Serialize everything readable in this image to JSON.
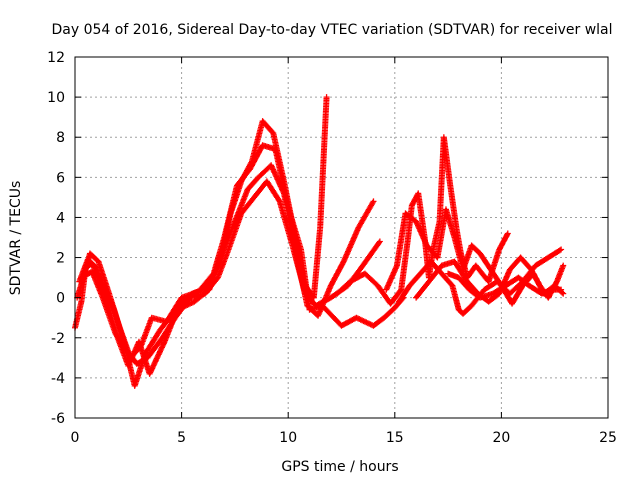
{
  "chart_data": {
    "type": "scatter",
    "title": "Day 054 of 2016, Sidereal Day-to-day VTEC variation (SDTVAR) for receiver wlal",
    "xlabel": "GPS time / hours",
    "ylabel": "SDTVAR / TECUs",
    "xlim": [
      0,
      25
    ],
    "ylim": [
      -6,
      12
    ],
    "xticks": [
      0,
      5,
      10,
      15,
      20,
      25
    ],
    "yticks": [
      -6,
      -4,
      -2,
      0,
      2,
      4,
      6,
      8,
      10,
      12
    ],
    "grid": true,
    "marker": "+",
    "color": "#ff0000",
    "series": [
      {
        "points": [
          [
            0.0,
            -1.5
          ],
          [
            0.3,
            -0.2
          ],
          [
            0.5,
            1.5
          ],
          [
            0.8,
            1.7
          ],
          [
            1.2,
            0.8
          ],
          [
            1.8,
            -0.5
          ],
          [
            2.3,
            -2.2
          ],
          [
            2.8,
            -4.4
          ],
          [
            3.3,
            -2.8
          ],
          [
            4.0,
            -1.6
          ],
          [
            4.8,
            -0.5
          ],
          [
            5.5,
            0.2
          ],
          [
            6.2,
            0.5
          ],
          [
            6.8,
            1.8
          ],
          [
            7.3,
            4.2
          ],
          [
            7.8,
            5.8
          ],
          [
            8.3,
            6.8
          ],
          [
            8.8,
            8.8
          ],
          [
            9.3,
            8.2
          ],
          [
            9.8,
            5.8
          ],
          [
            10.3,
            3.2
          ],
          [
            10.8,
            0.6
          ],
          [
            11.2,
            0.0
          ],
          [
            11.5,
            3.5
          ],
          [
            11.8,
            10.0
          ]
        ]
      },
      {
        "points": [
          [
            0.1,
            0.0
          ],
          [
            0.4,
            1.0
          ],
          [
            0.7,
            2.2
          ],
          [
            1.1,
            1.8
          ],
          [
            1.6,
            0.2
          ],
          [
            2.1,
            -1.5
          ],
          [
            2.6,
            -3.0
          ],
          [
            3.1,
            -2.4
          ],
          [
            3.6,
            -1.0
          ],
          [
            4.3,
            -1.2
          ],
          [
            5.0,
            0.0
          ],
          [
            5.8,
            0.3
          ],
          [
            6.5,
            1.2
          ],
          [
            7.0,
            3.0
          ],
          [
            7.6,
            5.6
          ],
          [
            8.2,
            6.4
          ],
          [
            8.8,
            7.6
          ],
          [
            9.4,
            7.4
          ],
          [
            10.0,
            4.5
          ],
          [
            10.6,
            2.4
          ],
          [
            11.0,
            -0.6
          ],
          [
            11.6,
            -0.4
          ],
          [
            12.5,
            -1.4
          ],
          [
            13.2,
            -1.0
          ],
          [
            14.0,
            -1.4
          ],
          [
            14.5,
            -1.0
          ],
          [
            15.0,
            -0.5
          ],
          [
            15.4,
            0.0
          ]
        ]
      },
      {
        "points": [
          [
            0.2,
            0.8
          ],
          [
            0.6,
            1.9
          ],
          [
            1.0,
            1.5
          ],
          [
            1.5,
            -0.2
          ],
          [
            2.0,
            -2.0
          ],
          [
            2.5,
            -3.4
          ],
          [
            3.0,
            -2.2
          ],
          [
            3.5,
            -3.8
          ],
          [
            4.2,
            -2.2
          ],
          [
            4.8,
            -0.6
          ],
          [
            5.6,
            -0.2
          ],
          [
            6.3,
            0.4
          ],
          [
            6.9,
            2.2
          ],
          [
            7.5,
            3.8
          ],
          [
            8.1,
            5.4
          ],
          [
            8.6,
            6.0
          ],
          [
            9.2,
            6.6
          ],
          [
            9.8,
            5.2
          ],
          [
            10.4,
            2.0
          ],
          [
            10.9,
            -0.4
          ],
          [
            11.4,
            -0.9
          ],
          [
            12.0,
            0.6
          ],
          [
            12.6,
            1.8
          ],
          [
            13.3,
            3.5
          ],
          [
            14.0,
            4.8
          ]
        ]
      },
      {
        "points": [
          [
            0.3,
            1.0
          ],
          [
            0.8,
            1.3
          ],
          [
            1.3,
            0.0
          ],
          [
            1.9,
            -1.8
          ],
          [
            2.4,
            -2.6
          ],
          [
            2.9,
            -3.3
          ],
          [
            3.4,
            -3.0
          ],
          [
            4.1,
            -2.0
          ],
          [
            4.7,
            -1.0
          ],
          [
            5.4,
            0.0
          ],
          [
            6.1,
            0.2
          ],
          [
            6.7,
            1.0
          ],
          [
            7.2,
            2.4
          ],
          [
            7.8,
            4.2
          ],
          [
            8.4,
            5.0
          ],
          [
            9.0,
            5.8
          ],
          [
            9.6,
            4.8
          ],
          [
            10.2,
            2.6
          ],
          [
            10.8,
            0.2
          ],
          [
            11.3,
            -0.4
          ],
          [
            12.0,
            0.0
          ],
          [
            12.8,
            0.6
          ],
          [
            13.5,
            1.6
          ],
          [
            14.3,
            2.8
          ]
        ]
      },
      {
        "points": [
          [
            12.3,
            0.2
          ],
          [
            12.9,
            0.8
          ],
          [
            13.6,
            1.2
          ],
          [
            14.2,
            0.6
          ],
          [
            14.8,
            -0.3
          ],
          [
            15.3,
            0.4
          ],
          [
            15.6,
            2.8
          ],
          [
            15.8,
            4.6
          ],
          [
            16.1,
            5.2
          ],
          [
            16.4,
            3.0
          ],
          [
            16.6,
            1.0
          ],
          [
            16.8,
            2.4
          ],
          [
            17.1,
            3.8
          ],
          [
            17.3,
            8.0
          ],
          [
            17.6,
            5.6
          ],
          [
            17.9,
            3.4
          ],
          [
            18.1,
            2.2
          ],
          [
            18.4,
            1.0
          ],
          [
            18.8,
            1.6
          ],
          [
            19.4,
            0.8
          ],
          [
            19.9,
            2.4
          ],
          [
            20.3,
            3.2
          ]
        ]
      },
      {
        "points": [
          [
            14.6,
            0.4
          ],
          [
            15.1,
            1.6
          ],
          [
            15.5,
            4.2
          ],
          [
            16.0,
            3.8
          ],
          [
            16.5,
            2.6
          ],
          [
            17.0,
            2.0
          ],
          [
            17.4,
            4.4
          ],
          [
            17.8,
            3.0
          ],
          [
            18.2,
            1.4
          ],
          [
            18.6,
            2.6
          ],
          [
            19.0,
            2.2
          ],
          [
            19.5,
            1.4
          ],
          [
            20.0,
            0.6
          ],
          [
            20.5,
            -0.3
          ],
          [
            21.0,
            0.6
          ],
          [
            21.5,
            1.2
          ],
          [
            22.0,
            0.2
          ],
          [
            22.5,
            0.6
          ],
          [
            22.9,
            0.2
          ]
        ]
      },
      {
        "points": [
          [
            15.2,
            -0.2
          ],
          [
            15.7,
            0.6
          ],
          [
            16.2,
            1.2
          ],
          [
            16.7,
            1.8
          ],
          [
            17.2,
            1.2
          ],
          [
            17.7,
            0.6
          ],
          [
            18.0,
            -0.6
          ],
          [
            18.2,
            -0.8
          ],
          [
            18.6,
            -0.4
          ],
          [
            19.2,
            0.4
          ],
          [
            19.8,
            0.8
          ],
          [
            20.4,
            0.2
          ],
          [
            21.0,
            0.8
          ],
          [
            21.6,
            1.6
          ],
          [
            22.2,
            2.0
          ],
          [
            22.8,
            2.4
          ]
        ]
      },
      {
        "points": [
          [
            16.0,
            0.0
          ],
          [
            16.6,
            0.8
          ],
          [
            17.2,
            1.6
          ],
          [
            17.8,
            1.8
          ],
          [
            18.4,
            0.8
          ],
          [
            18.9,
            0.2
          ],
          [
            19.4,
            -0.2
          ],
          [
            19.9,
            0.2
          ],
          [
            20.4,
            1.4
          ],
          [
            20.9,
            2.0
          ],
          [
            21.4,
            1.4
          ],
          [
            21.8,
            0.6
          ],
          [
            22.2,
            0.0
          ],
          [
            22.6,
            0.8
          ],
          [
            22.9,
            1.6
          ]
        ]
      },
      {
        "points": [
          [
            17.5,
            1.2
          ],
          [
            18.0,
            1.0
          ],
          [
            18.5,
            0.4
          ],
          [
            19.0,
            0.0
          ],
          [
            19.6,
            0.2
          ],
          [
            20.2,
            0.6
          ],
          [
            20.8,
            1.0
          ],
          [
            21.3,
            0.6
          ],
          [
            21.9,
            0.2
          ],
          [
            22.4,
            0.4
          ],
          [
            22.8,
            0.4
          ]
        ]
      }
    ]
  }
}
